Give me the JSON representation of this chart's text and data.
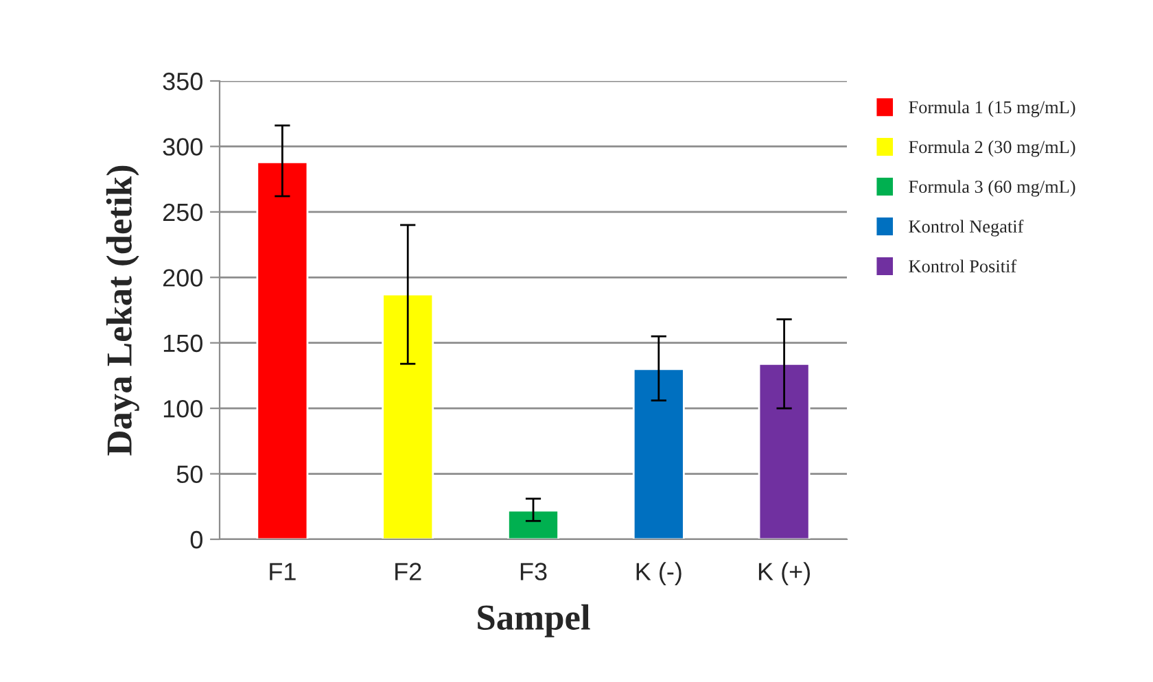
{
  "chart_data": {
    "type": "bar",
    "xlabel": "Sampel",
    "ylabel": "Daya Lekat (detik)",
    "categories": [
      "F1",
      "F2",
      "F3",
      "K (-)",
      "K (+)"
    ],
    "stacked": true,
    "series": [
      {
        "name": "Formula 1 (15 mg/mL)",
        "color": "#ff0000",
        "values": [
          288,
          null,
          null,
          null,
          null
        ],
        "errors": [
          [
            262,
            316
          ],
          null,
          null,
          null,
          null
        ]
      },
      {
        "name": "Formula 2 (30 mg/mL)",
        "color": "#ffff00",
        "values": [
          null,
          187,
          null,
          null,
          null
        ],
        "errors": [
          null,
          [
            134,
            240
          ],
          null,
          null,
          null
        ]
      },
      {
        "name": "Formula 3 (60 mg/mL)",
        "color": "#00b050",
        "values": [
          null,
          null,
          22,
          null,
          null
        ],
        "errors": [
          null,
          null,
          [
            14,
            31
          ],
          null,
          null
        ]
      },
      {
        "name": "Kontrol Negatif",
        "color": "#0070c0",
        "values": [
          null,
          null,
          null,
          130,
          null
        ],
        "errors": [
          null,
          null,
          null,
          [
            106,
            155
          ],
          null
        ]
      },
      {
        "name": "Kontrol Positif",
        "color": "#7030a0",
        "values": [
          null,
          null,
          null,
          null,
          134
        ],
        "errors": [
          null,
          null,
          null,
          null,
          [
            100,
            168
          ]
        ]
      }
    ],
    "ylim": [
      0,
      350
    ],
    "yticks": [
      0,
      50,
      100,
      150,
      200,
      250,
      300,
      350
    ],
    "grid": "y",
    "legend": "right"
  }
}
